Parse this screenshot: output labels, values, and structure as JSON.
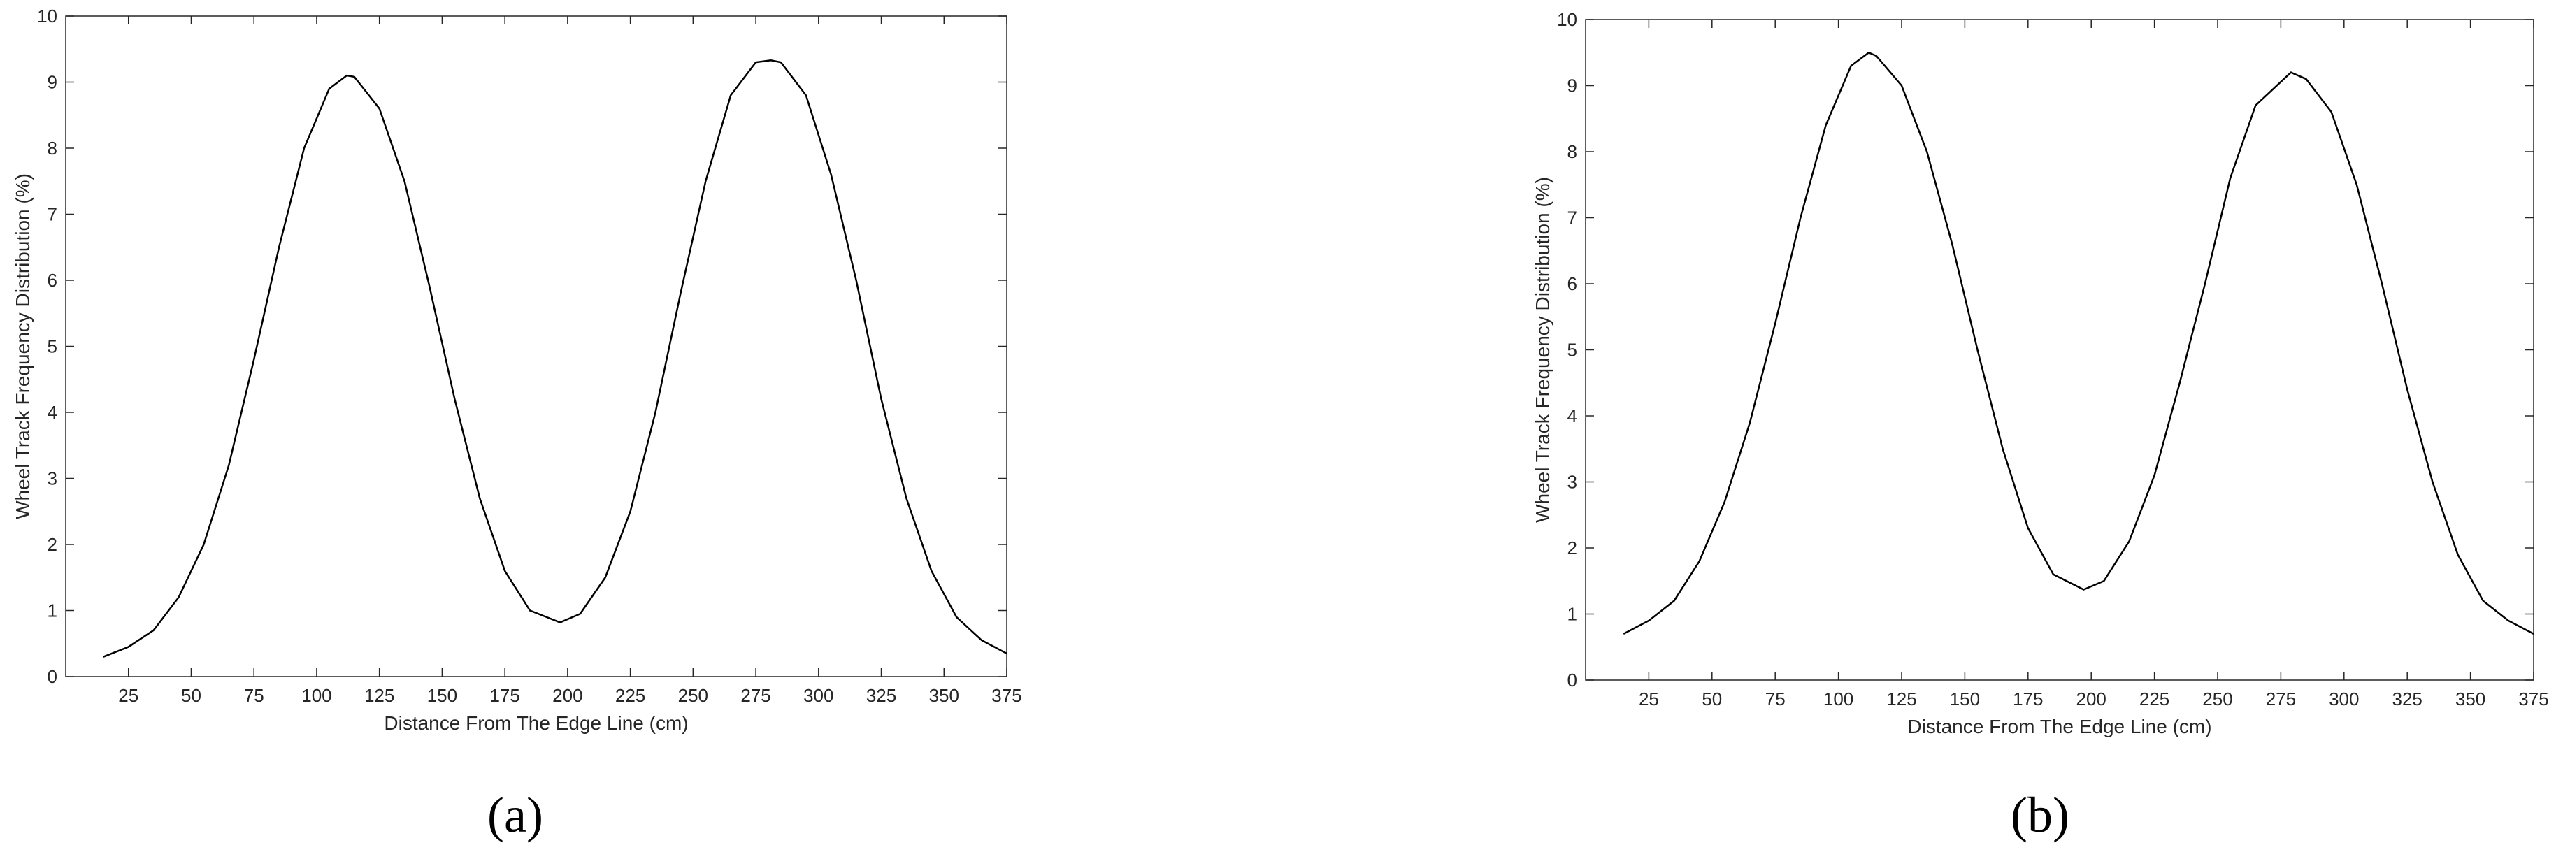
{
  "chart_data": [
    {
      "type": "line",
      "xlabel": "Distance From The Edge Line (cm)",
      "ylabel": "Wheel Track Frequency Distribution (%)",
      "caption": "(a)",
      "x": [
        15,
        25,
        35,
        45,
        55,
        65,
        75,
        85,
        95,
        105,
        112,
        115,
        125,
        135,
        145,
        155,
        165,
        175,
        185,
        197,
        205,
        215,
        225,
        235,
        245,
        255,
        265,
        275,
        281,
        285,
        295,
        305,
        315,
        325,
        335,
        345,
        355,
        365,
        375
      ],
      "series": [
        {
          "color": "#000000",
          "values": [
            0.3,
            0.45,
            0.7,
            1.2,
            2.0,
            3.2,
            4.8,
            6.5,
            8.0,
            8.9,
            9.1,
            9.08,
            8.6,
            7.5,
            5.9,
            4.2,
            2.7,
            1.6,
            1.0,
            0.82,
            0.95,
            1.5,
            2.5,
            4.0,
            5.8,
            7.5,
            8.8,
            9.3,
            9.33,
            9.3,
            8.8,
            7.6,
            6.0,
            4.2,
            2.7,
            1.6,
            0.9,
            0.55,
            0.35
          ]
        }
      ],
      "xlim": [
        0,
        375
      ],
      "xticks": [
        25,
        50,
        75,
        100,
        125,
        150,
        175,
        200,
        225,
        250,
        275,
        300,
        325,
        350,
        375
      ],
      "ylim": [
        0,
        10
      ],
      "yticks": [
        0,
        1,
        2,
        3,
        4,
        5,
        6,
        7,
        8,
        9,
        10
      ],
      "grid": false
    },
    {
      "type": "line",
      "xlabel": "Distance From The Edge Line (cm)",
      "ylabel": "Wheel Track Frequency Distribution (%)",
      "caption": "(b)",
      "x": [
        15,
        25,
        35,
        45,
        55,
        65,
        75,
        85,
        95,
        105,
        112,
        115,
        125,
        135,
        145,
        155,
        165,
        175,
        185,
        197,
        205,
        215,
        225,
        235,
        245,
        255,
        265,
        279,
        285,
        295,
        305,
        315,
        325,
        335,
        345,
        355,
        365,
        375
      ],
      "series": [
        {
          "color": "#000000",
          "values": [
            0.7,
            0.9,
            1.2,
            1.8,
            2.7,
            3.9,
            5.4,
            7.0,
            8.4,
            9.3,
            9.5,
            9.45,
            9.0,
            8.0,
            6.6,
            5.0,
            3.5,
            2.3,
            1.6,
            1.37,
            1.5,
            2.1,
            3.1,
            4.5,
            6.0,
            7.6,
            8.7,
            9.2,
            9.1,
            8.6,
            7.5,
            6.0,
            4.4,
            3.0,
            1.9,
            1.2,
            0.9,
            0.7
          ]
        }
      ],
      "xlim": [
        0,
        375
      ],
      "xticks": [
        25,
        50,
        75,
        100,
        125,
        150,
        175,
        200,
        225,
        250,
        275,
        300,
        325,
        350,
        375
      ],
      "ylim": [
        0,
        10
      ],
      "yticks": [
        0,
        1,
        2,
        3,
        4,
        5,
        6,
        7,
        8,
        9,
        10
      ],
      "grid": false
    }
  ]
}
